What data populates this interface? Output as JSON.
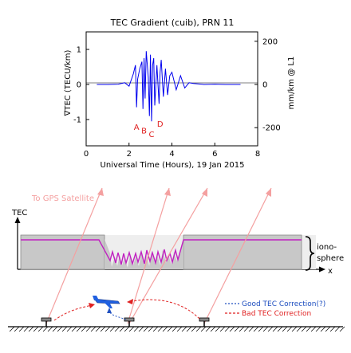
{
  "chart_data": {
    "type": "line",
    "title": "TEC Gradient (cuib), PRN 11",
    "xlabel": "Universal Time (Hours), 19 Jan 2015",
    "ylabel": "∇TEC (TECU/km)",
    "ylabel_right": "mm/km @ L1",
    "xlim": [
      0,
      8
    ],
    "ylim": [
      -1.75,
      1.5
    ],
    "xticks": [
      "0",
      "2",
      "4",
      "6",
      "8"
    ],
    "yticks_left": [
      "1",
      "0",
      "-1"
    ],
    "yticks_right": [
      "200",
      "0",
      "-200"
    ],
    "events": [
      {
        "label": "A",
        "x": 2.35,
        "y": -1.3
      },
      {
        "label": "B",
        "x": 2.7,
        "y": -1.4
      },
      {
        "label": "C",
        "x": 3.05,
        "y": -1.5
      },
      {
        "label": "D",
        "x": 3.45,
        "y": -1.2
      }
    ],
    "series": [
      {
        "color": "#0000ee",
        "x": [
          0.5,
          1.0,
          1.5,
          1.8,
          2.0,
          2.2,
          2.3,
          2.35,
          2.4,
          2.5,
          2.6,
          2.65,
          2.7,
          2.75,
          2.8,
          2.9,
          2.95,
          3.0,
          3.05,
          3.1,
          3.15,
          3.2,
          3.3,
          3.4,
          3.45,
          3.5,
          3.6,
          3.7,
          3.8,
          3.9,
          4.0,
          4.2,
          4.4,
          4.6,
          4.8,
          5.0,
          5.5,
          6.0,
          6.5,
          7.2
        ],
        "y": [
          0.0,
          0.0,
          0.01,
          0.05,
          -0.05,
          0.3,
          0.55,
          -0.65,
          0.15,
          0.45,
          0.65,
          -0.7,
          0.75,
          -0.4,
          0.95,
          0.2,
          -0.9,
          0.85,
          -1.05,
          0.55,
          0.75,
          -0.6,
          0.55,
          -0.55,
          0.35,
          0.7,
          -0.35,
          0.45,
          -0.3,
          0.25,
          0.35,
          -0.15,
          0.25,
          -0.1,
          0.05,
          0.03,
          0.0,
          0.01,
          0.0,
          0.0
        ]
      }
    ]
  },
  "diagram": {
    "satellite_label": "To GPS Satellite",
    "tec_axis_label": "TEC",
    "x_axis_label": "x",
    "ionosphere_label_1": "iono-",
    "ionosphere_label_2": "sphere",
    "legend": [
      {
        "label": "Good TEC Correction(?)",
        "color": "#2050c0"
      },
      {
        "label": "Bad TEC Correction",
        "color": "#e02020"
      }
    ]
  }
}
